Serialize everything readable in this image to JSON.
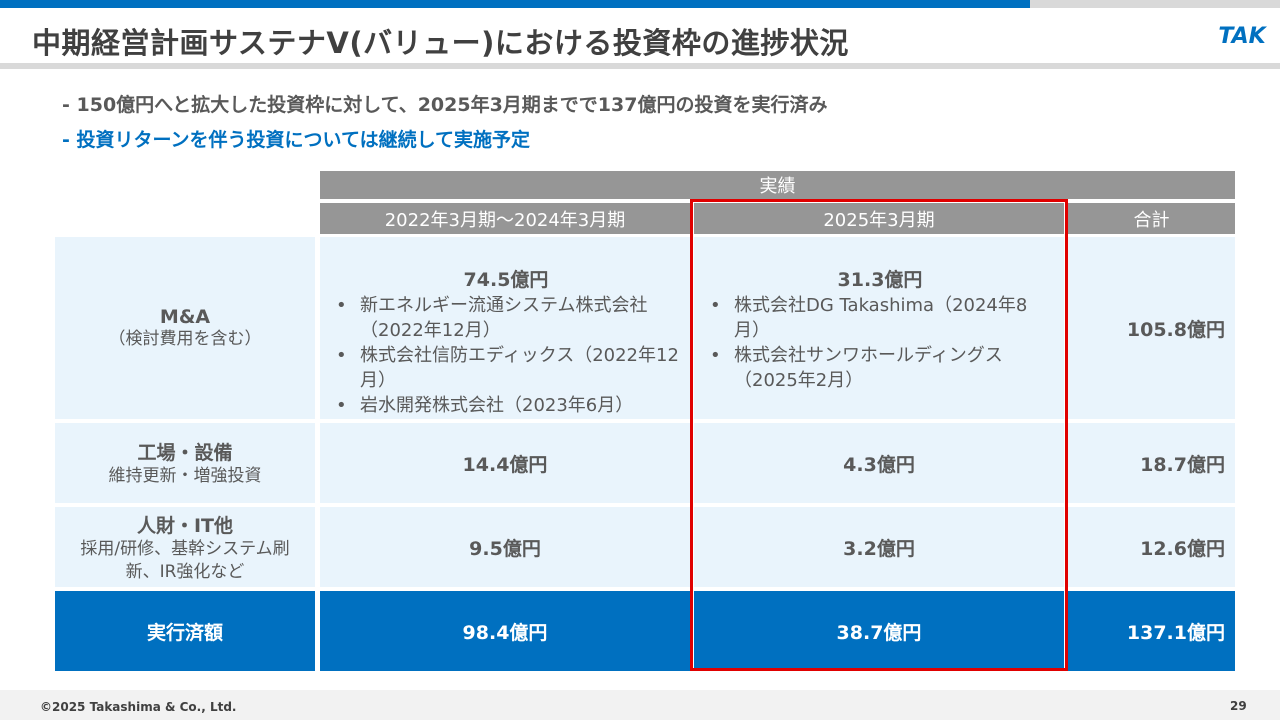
{
  "header": {
    "title": "中期経営計画サステナV(バリュー)における投資枠の進捗状況",
    "logo_text": "TAK"
  },
  "bullets": [
    "- 150億円へと拡大した投資枠に対して、2025年3月期までで137億円の投資を実行済み",
    "- 投資リターンを伴う投資については継続して実施予定"
  ],
  "table": {
    "group_header": "実績",
    "columns": [
      "2022年3月期～2024年3月期",
      "2025年3月期",
      "合計"
    ],
    "rows": [
      {
        "label": "M&A",
        "sublabel": "（検討費用を含む）",
        "col1": {
          "amount": "74.5億円",
          "items": [
            "新エネルギー流通システム株式会社（2022年12月）",
            "株式会社信防エディックス（2022年12月）",
            "岩水開発株式会社（2023年6月）"
          ]
        },
        "col2": {
          "amount": "31.3億円",
          "items": [
            "株式会社DG Takashima（2024年8月）",
            "株式会社サンワホールディングス（2025年2月）"
          ]
        },
        "total": "105.8億円"
      },
      {
        "label": "工場・設備",
        "sublabel": "維持更新・増強投資",
        "col1": "14.4億円",
        "col2": "4.3億円",
        "total": "18.7億円"
      },
      {
        "label": "人財・IT他",
        "sublabel": "採用/研修、基幹システム刷新、IR強化など",
        "col1": "9.5億円",
        "col2": "3.2億円",
        "total": "12.6億円"
      }
    ],
    "total_row": {
      "label": "実行済額",
      "col1": "98.4億円",
      "col2": "38.7億円",
      "total": "137.1億円"
    }
  },
  "footer": {
    "copyright": "©2025 Takashima & Co., Ltd.",
    "page": "29"
  },
  "colors": {
    "accent_blue": "#0070c0",
    "header_grey": "#969696",
    "cell_bg": "#e9f4fc",
    "highlight_red": "#e00000"
  }
}
